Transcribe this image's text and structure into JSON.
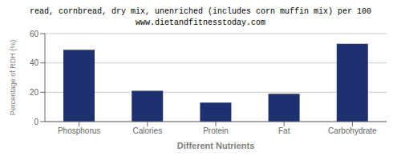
{
  "chart_data": {
    "type": "bar",
    "title": "read, cornbread, dry mix, unenriched (includes corn muffin mix) per 100",
    "subtitle": "www.dietandfitnesstoday.com",
    "xlabel": "Different Nutrients",
    "ylabel": "Percentage of RDH (%)",
    "categories": [
      "Phosphorus",
      "Calories",
      "Protein",
      "Fat",
      "Carbohydrate"
    ],
    "values": [
      49,
      21,
      13,
      19,
      53
    ],
    "color": "#1f3070",
    "ylim": [
      0,
      60
    ],
    "yticks": [
      0,
      20,
      40,
      60
    ],
    "grid": true
  }
}
